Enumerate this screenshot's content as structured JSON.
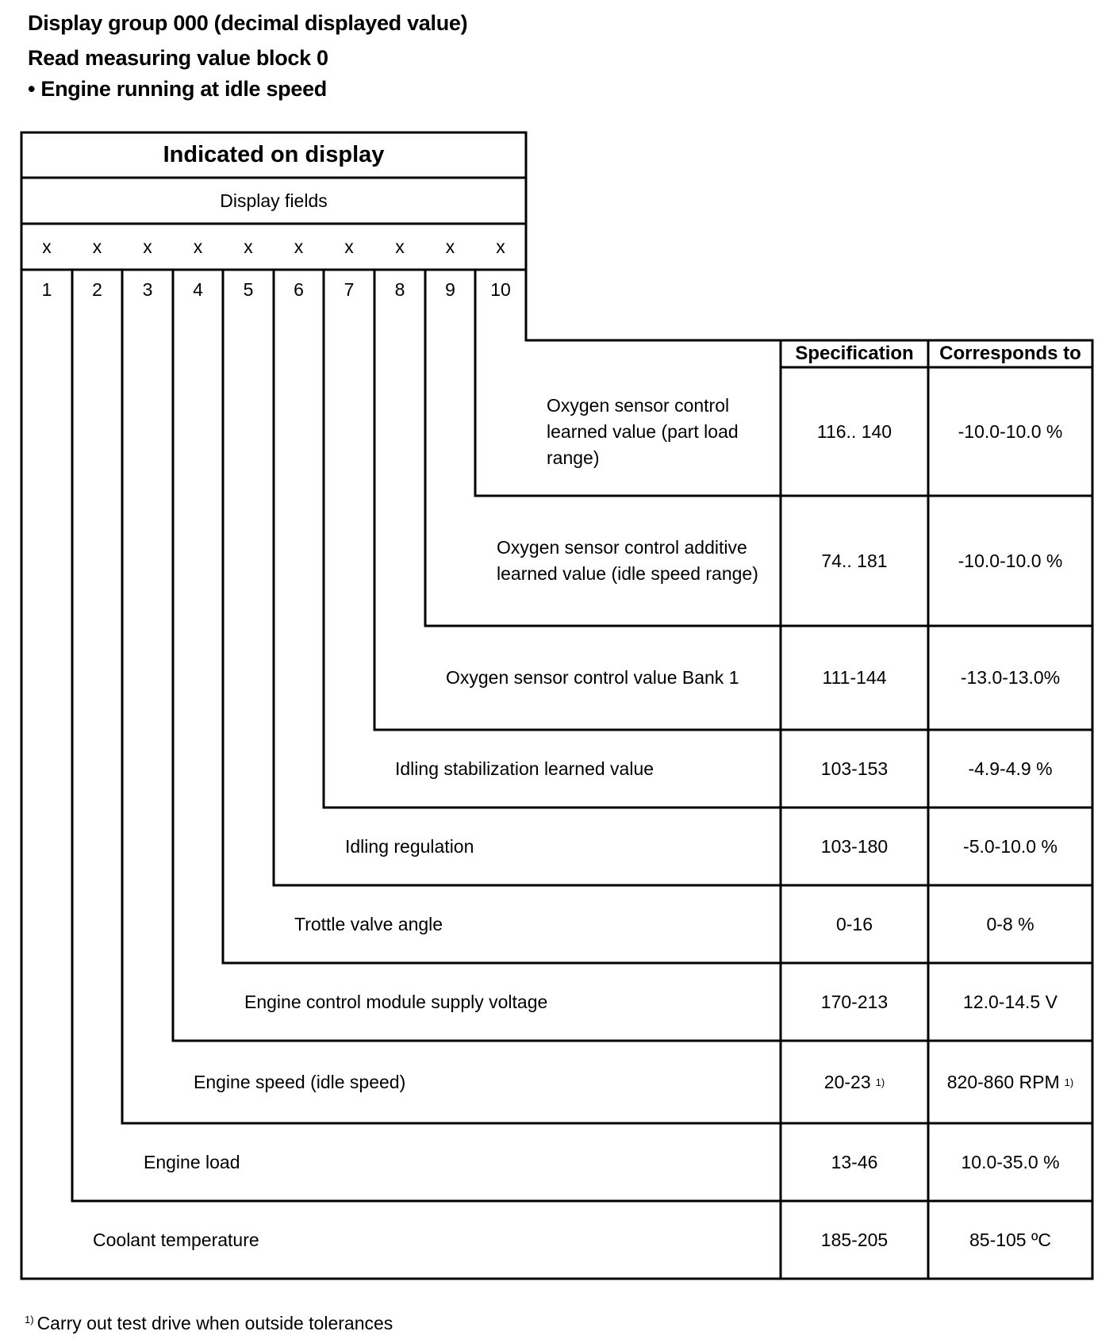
{
  "heading": {
    "line1": "Display group 000 (decimal displayed value)",
    "line2": "Read measuring value block 0",
    "line3": "• Engine running at idle speed"
  },
  "table": {
    "title": "Indicated on display",
    "subtitle": "Display fields",
    "marks": [
      "x",
      "x",
      "x",
      "x",
      "x",
      "x",
      "x",
      "x",
      "x",
      "x"
    ],
    "field_numbers": [
      "1",
      "2",
      "3",
      "4",
      "5",
      "6",
      "7",
      "8",
      "9",
      "10"
    ],
    "spec_header": "Specification",
    "corr_header": "Corresponds to",
    "rows": [
      {
        "field": "10",
        "label": "Oxygen sensor control learned value (part load range)",
        "spec": "116.. 140",
        "spec_note": "",
        "corr": "-10.0-10.0 %",
        "corr_note": ""
      },
      {
        "field": "9",
        "label": "Oxygen sensor control additive learned value (idle speed range)",
        "spec": "74.. 181",
        "spec_note": "",
        "corr": "-10.0-10.0 %",
        "corr_note": ""
      },
      {
        "field": "8",
        "label": "Oxygen sensor control value Bank 1",
        "spec": "111-144",
        "spec_note": "",
        "corr": "-13.0-13.0%",
        "corr_note": ""
      },
      {
        "field": "7",
        "label": "Idling stabilization learned value",
        "spec": "103-153",
        "spec_note": "",
        "corr": "-4.9-4.9 %",
        "corr_note": ""
      },
      {
        "field": "6",
        "label": "Idling regulation",
        "spec": "103-180",
        "spec_note": "",
        "corr": "-5.0-10.0 %",
        "corr_note": ""
      },
      {
        "field": "5",
        "label": "Trottle valve angle",
        "spec": "0-16",
        "spec_note": "",
        "corr": "0-8 %",
        "corr_note": ""
      },
      {
        "field": "4",
        "label": "Engine control module supply voltage",
        "spec": "170-213",
        "spec_note": "",
        "corr": "12.0-14.5 V",
        "corr_note": ""
      },
      {
        "field": "3",
        "label": "Engine speed (idle speed)",
        "spec": "20-23",
        "spec_note": "1)",
        "corr": "820-860 RPM",
        "corr_note": "1)"
      },
      {
        "field": "2",
        "label": "Engine load",
        "spec": "13-46",
        "spec_note": "",
        "corr": "10.0-35.0 %",
        "corr_note": ""
      },
      {
        "field": "1",
        "label": "Coolant temperature",
        "spec": "185-205",
        "spec_note": "",
        "corr": "85-105 ºC",
        "corr_note": ""
      }
    ]
  },
  "footnote": {
    "mark": "1)",
    "text": "Carry out test drive when outside tolerances"
  }
}
